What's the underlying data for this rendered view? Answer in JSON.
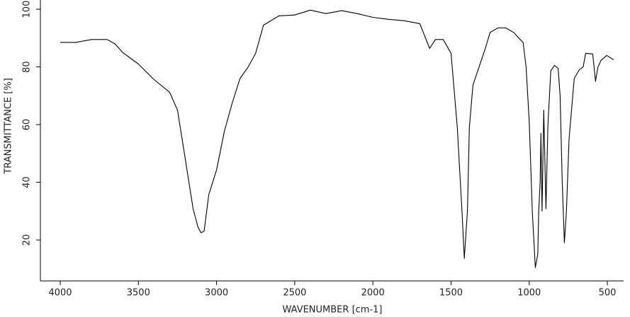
{
  "chart_data": {
    "type": "line",
    "x_label": "WAVENUMBER [cm-1]",
    "y_label": "TRANSMITTANCE [%]",
    "xlim": [
      4127,
      396
    ],
    "ylim": [
      5.8,
      103.2
    ],
    "xticks": [
      4000,
      3500,
      3000,
      2500,
      2000,
      1500,
      1000,
      500
    ],
    "yticks": [
      20,
      40,
      60,
      80,
      100
    ],
    "grid": false,
    "series": [
      {
        "color": "#000000",
        "x": [
          4000,
          3900,
          3800,
          3700,
          3650,
          3600,
          3500,
          3400,
          3300,
          3250,
          3200,
          3150,
          3120,
          3100,
          3080,
          3050,
          3000,
          2950,
          2900,
          2850,
          2800,
          2750,
          2700,
          2600,
          2500,
          2400,
          2300,
          2200,
          2100,
          2000,
          1900,
          1800,
          1700,
          1637,
          1600,
          1550,
          1500,
          1460,
          1430,
          1415,
          1395,
          1383,
          1360,
          1283,
          1250,
          1200,
          1150,
          1100,
          1039,
          1020,
          1000,
          980,
          961,
          945,
          939,
          930,
          925,
          918,
          907,
          893,
          880,
          862,
          839,
          815,
          802,
          789,
          775,
          762,
          745,
          712,
          680,
          655,
          639,
          594,
          585,
          576,
          560,
          540,
          504,
          476,
          460
        ],
        "values": [
          88.5,
          88.5,
          89.5,
          89.5,
          88,
          85,
          81,
          75.6,
          71.2,
          65,
          48,
          30.8,
          24.7,
          22.5,
          23,
          35.7,
          44.3,
          57.7,
          67.5,
          76,
          79.8,
          84.7,
          94.5,
          97.7,
          98,
          99.7,
          98.5,
          99.5,
          98.5,
          97.2,
          96.5,
          96,
          95,
          86.4,
          89.5,
          89.5,
          84.7,
          59,
          30,
          13.6,
          30,
          59,
          73.7,
          86,
          92,
          93.5,
          93.5,
          92,
          88.4,
          80,
          61,
          29.6,
          10.4,
          15,
          30,
          40,
          57,
          30,
          65,
          30.8,
          60,
          78.6,
          80.5,
          79.5,
          70,
          40.6,
          19,
          30,
          55,
          76,
          79,
          80,
          84.7,
          84.5,
          80,
          75,
          80,
          82.3,
          84,
          83,
          82.5
        ]
      }
    ]
  }
}
